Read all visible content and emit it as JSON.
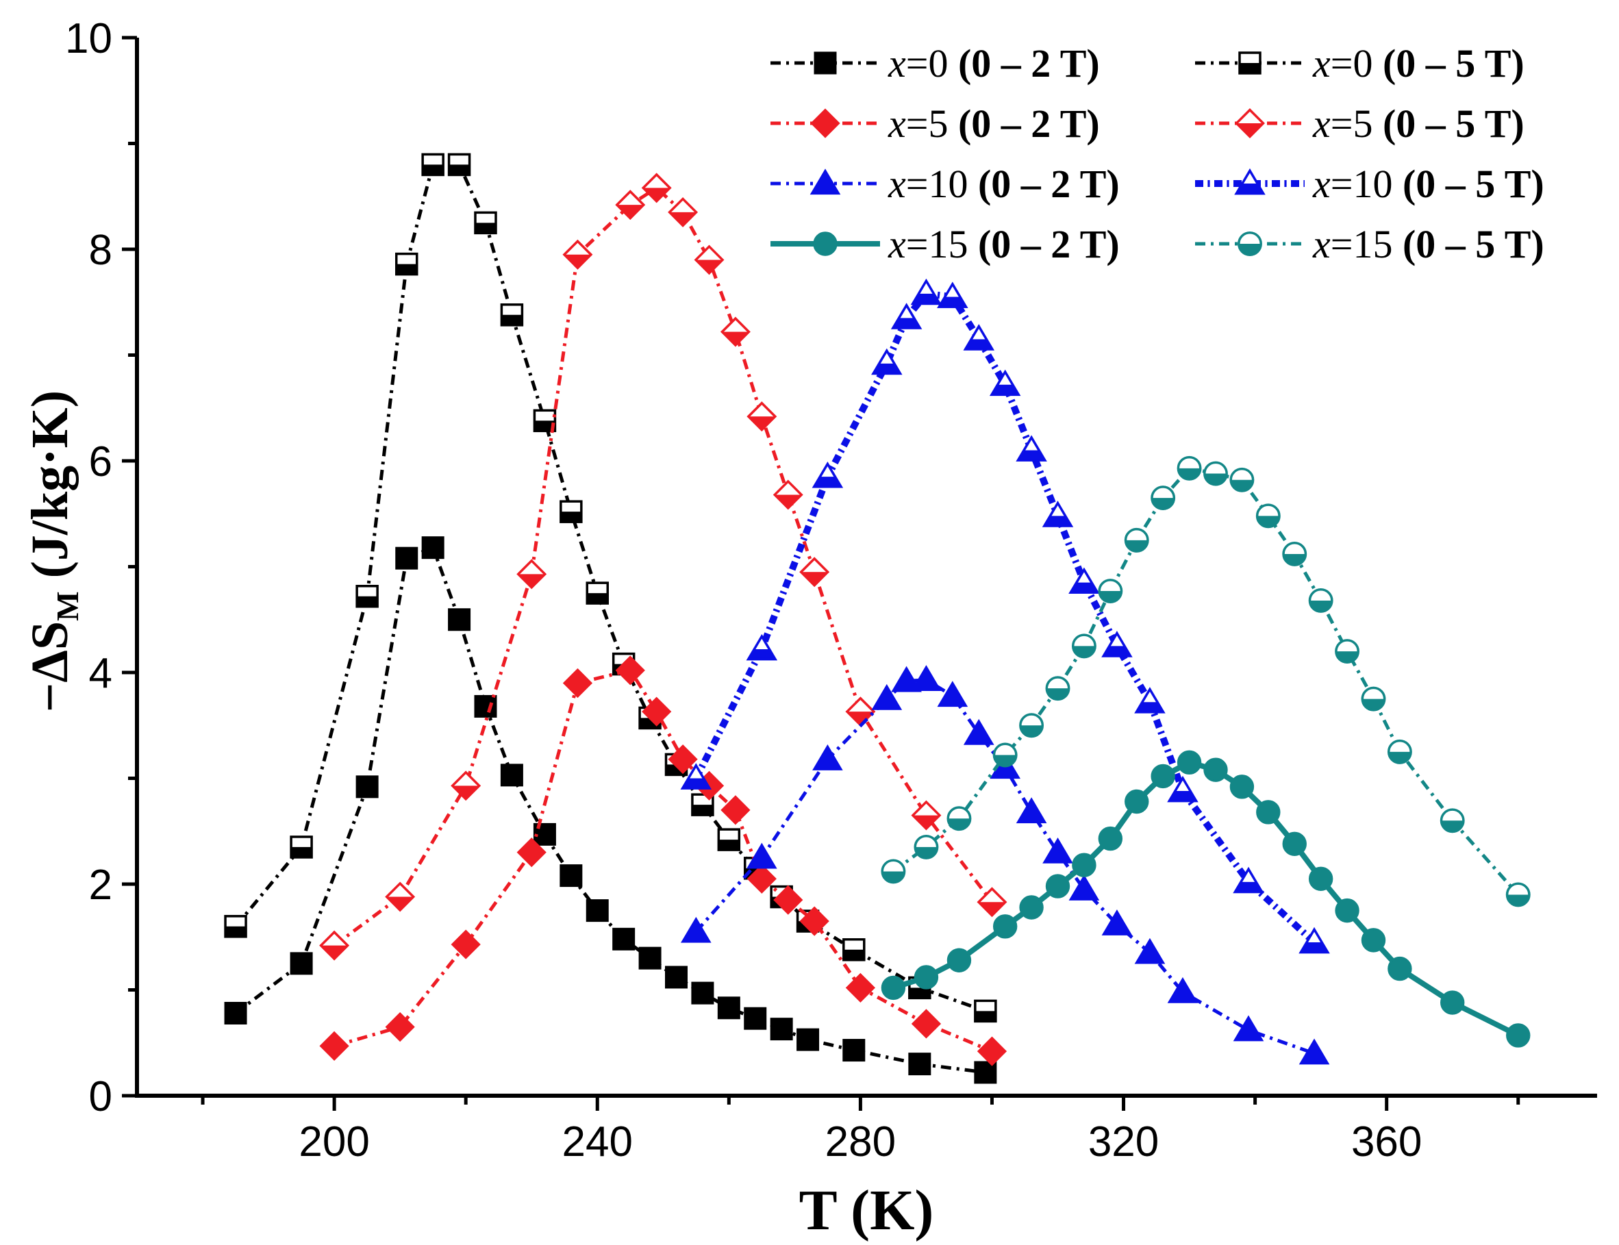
{
  "chart_data": {
    "type": "line",
    "title": "",
    "xlabel": "T (K)",
    "ylabel_main": "−ΔS",
    "ylabel_sub": "M",
    "ylabel_units": " (J/kg·K)",
    "xlim": [
      170,
      392
    ],
    "ylim": [
      0,
      10
    ],
    "xticks": [
      200,
      240,
      280,
      320,
      360
    ],
    "xtick_labels": [
      "200",
      "240",
      "280",
      "320",
      "360"
    ],
    "yticks": [
      0,
      2,
      4,
      6,
      8,
      10
    ],
    "ytick_labels": [
      "0",
      "2",
      "4",
      "6",
      "8",
      "10"
    ],
    "legend_position": "top-right",
    "series": [
      {
        "name": "x=0 (0 – 2 T)",
        "comp": "x",
        "val": "=0 ",
        "field": "(0 – 2 T)",
        "color": "#000000",
        "marker": "square",
        "fill": "full",
        "dash": "dash-dot",
        "width": 5,
        "x": [
          185,
          195,
          205,
          211,
          215,
          219,
          223,
          227,
          232,
          236,
          240,
          244,
          248,
          252,
          256,
          260,
          264,
          268,
          272,
          279,
          289,
          299
        ],
        "y": [
          0.78,
          1.25,
          2.92,
          5.08,
          5.18,
          4.5,
          3.68,
          3.03,
          2.47,
          2.08,
          1.75,
          1.48,
          1.3,
          1.12,
          0.97,
          0.83,
          0.73,
          0.63,
          0.53,
          0.43,
          0.3,
          0.22
        ]
      },
      {
        "name": "x=0 (0 – 5 T)",
        "comp": "x",
        "val": "=0 ",
        "field": "(0 – 5 T)",
        "color": "#000000",
        "marker": "square",
        "fill": "bottom",
        "dash": "dash-dot",
        "width": 5,
        "x": [
          185,
          195,
          205,
          211,
          215,
          219,
          223,
          227,
          232,
          236,
          240,
          244,
          248,
          252,
          256,
          260,
          264,
          268,
          272,
          279,
          289,
          299
        ],
        "y": [
          1.6,
          2.35,
          4.72,
          7.86,
          8.8,
          8.8,
          8.25,
          7.38,
          6.38,
          5.52,
          4.75,
          4.08,
          3.57,
          3.13,
          2.75,
          2.42,
          2.15,
          1.88,
          1.65,
          1.38,
          1.02,
          0.8
        ]
      },
      {
        "name": "x=5 (0 – 2 T)",
        "comp": "x",
        "val": "=5 ",
        "field": "(0 – 2 T)",
        "color": "#ee1c24",
        "marker": "diamond",
        "fill": "full",
        "dash": "dash-dot",
        "width": 5,
        "x": [
          200,
          210,
          220,
          230,
          237,
          245,
          249,
          253,
          257,
          261,
          265,
          269,
          273,
          280,
          290,
          300
        ],
        "y": [
          0.47,
          0.65,
          1.43,
          2.3,
          3.9,
          4.02,
          3.63,
          3.18,
          2.93,
          2.7,
          2.05,
          1.85,
          1.65,
          1.02,
          0.68,
          0.42
        ]
      },
      {
        "name": "x=5 (0 – 5 T)",
        "comp": "x",
        "val": "=5 ",
        "field": "(0 – 5 T)",
        "color": "#ee1c24",
        "marker": "diamond",
        "fill": "bottom",
        "dash": "dash-dot",
        "width": 5,
        "x": [
          200,
          210,
          220,
          230,
          237,
          245,
          249,
          253,
          257,
          261,
          265,
          269,
          273,
          280,
          290,
          300
        ],
        "y": [
          1.42,
          1.88,
          2.93,
          4.93,
          7.95,
          8.42,
          8.58,
          8.35,
          7.9,
          7.22,
          6.42,
          5.68,
          4.95,
          3.63,
          2.65,
          1.83
        ]
      },
      {
        "name": "x=10 (0 – 2 T)",
        "comp": "x",
        "val": "=10 ",
        "field": "(0 – 2 T)",
        "color": "#0a0fe6",
        "marker": "triangle",
        "fill": "full",
        "dash": "dash-dot",
        "width": 5,
        "x": [
          255,
          265,
          275,
          284,
          287,
          290,
          294,
          298,
          302,
          306,
          310,
          314,
          319,
          324,
          329,
          339,
          349
        ],
        "y": [
          1.55,
          2.25,
          3.18,
          3.75,
          3.92,
          3.93,
          3.78,
          3.42,
          3.1,
          2.68,
          2.3,
          1.95,
          1.62,
          1.35,
          0.98,
          0.62,
          0.4
        ]
      },
      {
        "name": "x=10 (0 – 5 T)",
        "comp": "x",
        "val": "=10 ",
        "field": "(0 – 5 T)",
        "color": "#0a0fe6",
        "marker": "triangle",
        "fill": "bottom",
        "dash": "dash-dot",
        "width": 10,
        "x": [
          255,
          265,
          275,
          284,
          287,
          290,
          294,
          298,
          302,
          306,
          310,
          314,
          319,
          324,
          329,
          339,
          349
        ],
        "y": [
          3.0,
          4.22,
          5.85,
          6.92,
          7.35,
          7.58,
          7.55,
          7.15,
          6.72,
          6.1,
          5.48,
          4.85,
          4.25,
          3.72,
          2.88,
          2.02,
          1.45
        ]
      },
      {
        "name": "x=15 (0 – 2 T)",
        "comp": "x",
        "val": "=15 ",
        "field": "(0 – 2 T)",
        "color": "#138787",
        "marker": "circle",
        "fill": "full",
        "dash": "solid",
        "width": 8,
        "x": [
          285,
          290,
          295,
          302,
          306,
          310,
          314,
          318,
          322,
          326,
          330,
          334,
          338,
          342,
          346,
          350,
          354,
          358,
          362,
          370,
          380
        ],
        "y": [
          1.02,
          1.12,
          1.28,
          1.6,
          1.78,
          1.98,
          2.18,
          2.43,
          2.78,
          3.02,
          3.15,
          3.08,
          2.92,
          2.68,
          2.38,
          2.05,
          1.75,
          1.47,
          1.2,
          0.88,
          0.57
        ]
      },
      {
        "name": "x=15 (0 – 5 T)",
        "comp": "x",
        "val": "=15 ",
        "field": "(0 – 5 T)",
        "color": "#138787",
        "marker": "circle",
        "fill": "bottom",
        "dash": "dash-dot",
        "width": 5,
        "x": [
          285,
          290,
          295,
          302,
          306,
          310,
          314,
          318,
          322,
          326,
          330,
          334,
          338,
          342,
          346,
          350,
          354,
          358,
          362,
          370,
          380
        ],
        "y": [
          2.12,
          2.35,
          2.62,
          3.22,
          3.5,
          3.85,
          4.25,
          4.77,
          5.25,
          5.65,
          5.93,
          5.88,
          5.82,
          5.48,
          5.12,
          4.68,
          4.2,
          3.75,
          3.25,
          2.6,
          1.9
        ]
      }
    ]
  }
}
